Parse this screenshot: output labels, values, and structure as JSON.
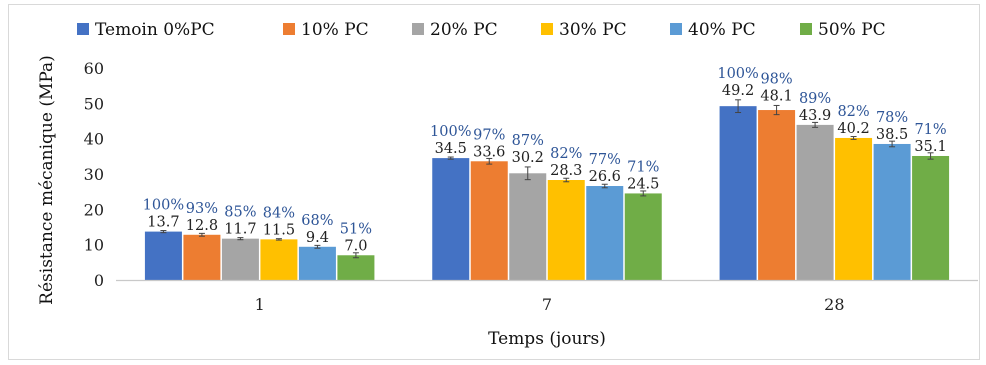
{
  "chart_data": {
    "type": "bar",
    "title": "",
    "xlabel": "Temps (jours)",
    "ylabel": "Résistance mécanique (MPa)",
    "categories": [
      "1",
      "7",
      "28"
    ],
    "ylim": [
      0,
      60
    ],
    "yticks": [
      "0",
      "10",
      "20",
      "30",
      "40",
      "50",
      "60"
    ],
    "grid": false,
    "legend_position": "top",
    "series": [
      {
        "name": "Temoin 0%PC",
        "color": "#4472C4",
        "values": [
          13.7,
          34.5,
          49.2
        ],
        "value_labels": [
          "13.7",
          "34.5",
          "49.2"
        ],
        "pct_labels": [
          "100%",
          "100%",
          "100%"
        ],
        "errors": [
          0.3,
          0.3,
          1.8
        ]
      },
      {
        "name": "10% PC",
        "color": "#ED7D31",
        "values": [
          12.8,
          33.6,
          48.1
        ],
        "value_labels": [
          "12.8",
          "33.6",
          "48.1"
        ],
        "pct_labels": [
          "93%",
          "97%",
          "98%"
        ],
        "errors": [
          0.4,
          0.8,
          1.3
        ]
      },
      {
        "name": "20% PC",
        "color": "#A5A5A5",
        "values": [
          11.7,
          30.2,
          43.9
        ],
        "value_labels": [
          "11.7",
          "30.2",
          "43.9"
        ],
        "pct_labels": [
          "85%",
          "87%",
          "89%"
        ],
        "errors": [
          0.3,
          1.8,
          0.7
        ]
      },
      {
        "name": "30% PC",
        "color": "#FFC000",
        "values": [
          11.5,
          28.3,
          40.2
        ],
        "value_labels": [
          "11.5",
          "28.3",
          "40.2"
        ],
        "pct_labels": [
          "84%",
          "82%",
          "82%"
        ],
        "errors": [
          0.2,
          0.5,
          0.4
        ]
      },
      {
        "name": "40% PC",
        "color": "#5B9BD5",
        "values": [
          9.4,
          26.6,
          38.5
        ],
        "value_labels": [
          "9.4",
          "26.6",
          "38.5"
        ],
        "pct_labels": [
          "68%",
          "77%",
          "78%"
        ],
        "errors": [
          0.4,
          0.5,
          0.8
        ]
      },
      {
        "name": "50% PC",
        "color": "#70AD47",
        "values": [
          7.0,
          24.5,
          35.1
        ],
        "value_labels": [
          "7.0",
          "24.5",
          "35.1"
        ],
        "pct_labels": [
          "51%",
          "71%",
          "71%"
        ],
        "errors": [
          0.7,
          0.7,
          0.9
        ]
      }
    ]
  }
}
